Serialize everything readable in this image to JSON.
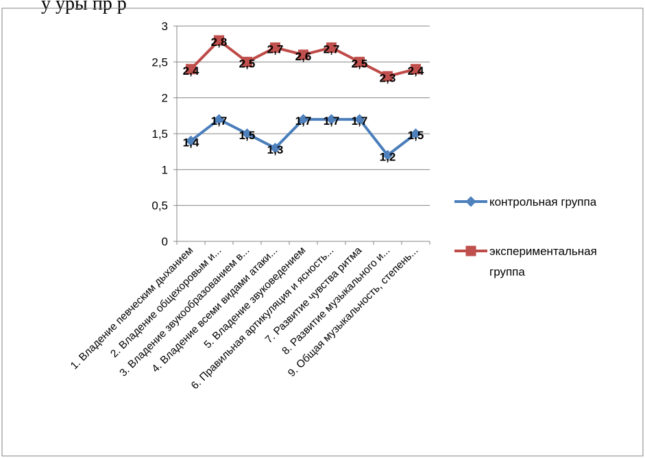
{
  "header_fragment": "у       уры         пр                                           р",
  "colors": {
    "control": "#4A7EBB",
    "control_marker": "#4F81BD",
    "experimental": "#BE4B48",
    "experimental_marker": "#C0504D",
    "grid": "#868686",
    "border": "#808080"
  },
  "chart_data": {
    "type": "line",
    "categories": [
      "1. Владение певческим дыханием",
      "2. Владение общехоровым  и...",
      "3. Владение звукообразованием в...",
      "4. Владение всеми видами атаки...",
      "5. Владение звуковедением",
      "6. Правильная артикуляция и ясность...",
      "7. Развитие чувства ритма",
      "8. Развитие музыкального и...",
      "9. Общая музыкальность, степень..."
    ],
    "series": [
      {
        "name": "контрольная группа",
        "values": [
          1.4,
          1.7,
          1.5,
          1.3,
          1.7,
          1.7,
          1.7,
          1.2,
          1.5
        ],
        "labels": [
          "1,4",
          "1,7",
          "1,5",
          "1,3",
          "1,7",
          "1,7",
          "1,7",
          "1,2",
          "1,5"
        ],
        "marker": "diamond"
      },
      {
        "name": "экспериментальная группа",
        "values": [
          2.4,
          2.8,
          2.5,
          2.7,
          2.6,
          2.7,
          2.5,
          2.3,
          2.4
        ],
        "labels": [
          "2,4",
          "2,8",
          "2,5",
          "2,7",
          "2,6",
          "2,7",
          "2,5",
          "2,3",
          "2,4"
        ],
        "marker": "square"
      }
    ],
    "y_ticks": [
      "0",
      "0,5",
      "1",
      "1,5",
      "2",
      "2,5",
      "3"
    ],
    "ylim": [
      0,
      3
    ],
    "grid": true,
    "legend_placement": "right",
    "legend": [
      {
        "lines": [
          "контрольная группа"
        ]
      },
      {
        "lines": [
          "экспериментальная",
          "группа"
        ]
      }
    ]
  }
}
